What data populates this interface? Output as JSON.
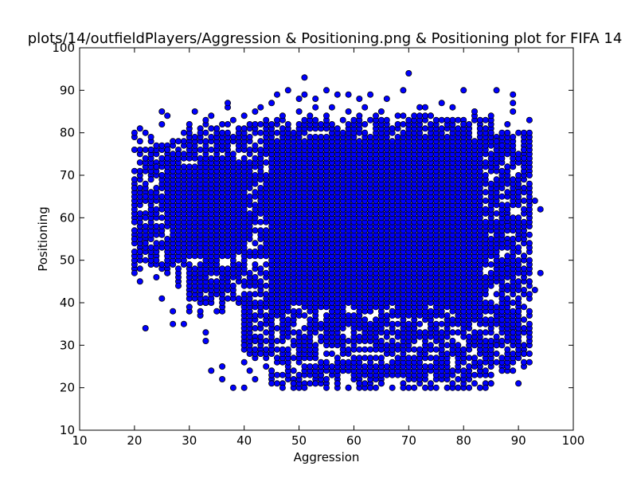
{
  "chart_data": {
    "type": "scatter",
    "title": "plots/14/outfieldPlayers/Aggression & Positioning.png & Positioning plot for FIFA 14",
    "xlabel": "Aggression",
    "ylabel": "Positioning",
    "xlim": [
      10,
      100
    ],
    "ylim": [
      10,
      100
    ],
    "xticks": [
      10,
      20,
      30,
      40,
      50,
      60,
      70,
      80,
      90,
      100
    ],
    "yticks": [
      10,
      20,
      30,
      40,
      50,
      60,
      70,
      80,
      90,
      100
    ],
    "grid": false,
    "marker_color": "#0000ff",
    "marker_edge": "#000000",
    "series": [
      {
        "region_x_range": [
          20,
          94
        ],
        "region_y_range": [
          20,
          94
        ],
        "points": [
          [
            20,
            67
          ],
          [
            20,
            59
          ],
          [
            20,
            55
          ],
          [
            20,
            47
          ],
          [
            21,
            81
          ],
          [
            21,
            76
          ],
          [
            21,
            52
          ],
          [
            21,
            45
          ],
          [
            22,
            80
          ],
          [
            22,
            76
          ],
          [
            22,
            34
          ],
          [
            23,
            79
          ],
          [
            23,
            76
          ],
          [
            23,
            69
          ],
          [
            25,
            85
          ],
          [
            25,
            82
          ],
          [
            25,
            41
          ],
          [
            26,
            84
          ],
          [
            26,
            76
          ],
          [
            27,
            38
          ],
          [
            27,
            35
          ],
          [
            29,
            35
          ],
          [
            29,
            80
          ],
          [
            31,
            85
          ],
          [
            33,
            33
          ],
          [
            33,
            31
          ],
          [
            34,
            24
          ],
          [
            34,
            84
          ],
          [
            36,
            25
          ],
          [
            36,
            22
          ],
          [
            37,
            86
          ],
          [
            37,
            87
          ],
          [
            38,
            20
          ],
          [
            40,
            20
          ],
          [
            40,
            30
          ],
          [
            40,
            26
          ],
          [
            41,
            24
          ],
          [
            42,
            22
          ],
          [
            43,
            86
          ],
          [
            45,
            87
          ],
          [
            46,
            89
          ],
          [
            48,
            90
          ],
          [
            50,
            88
          ],
          [
            51,
            89
          ],
          [
            51,
            93
          ],
          [
            53,
            88
          ],
          [
            55,
            90
          ],
          [
            57,
            89
          ],
          [
            59,
            89
          ],
          [
            61,
            88
          ],
          [
            63,
            89
          ],
          [
            66,
            88
          ],
          [
            69,
            90
          ],
          [
            70,
            94
          ],
          [
            72,
            86
          ],
          [
            73,
            86
          ],
          [
            76,
            87
          ],
          [
            78,
            86
          ],
          [
            80,
            90
          ],
          [
            82,
            85
          ],
          [
            86,
            90
          ],
          [
            88,
            82
          ],
          [
            89,
            89
          ],
          [
            89,
            87
          ],
          [
            89,
            85
          ],
          [
            90,
            66
          ],
          [
            90,
            55
          ],
          [
            90,
            21
          ],
          [
            91,
            76
          ],
          [
            91,
            74
          ],
          [
            91,
            51
          ],
          [
            91,
            28
          ],
          [
            92,
            83
          ],
          [
            92,
            70
          ],
          [
            92,
            26
          ],
          [
            93,
            64
          ],
          [
            93,
            43
          ],
          [
            94,
            62
          ],
          [
            94,
            47
          ],
          [
            89,
            33
          ],
          [
            90,
            38
          ],
          [
            90,
            41
          ],
          [
            88,
            58
          ],
          [
            87,
            24
          ],
          [
            86,
            78
          ],
          [
            85,
            21
          ],
          [
            84,
            20
          ],
          [
            83,
            20
          ],
          [
            81,
            20
          ],
          [
            79,
            20
          ],
          [
            77,
            20
          ],
          [
            75,
            20
          ],
          [
            73,
            20
          ],
          [
            71,
            20
          ],
          [
            69,
            20
          ],
          [
            67,
            20
          ],
          [
            65,
            21
          ],
          [
            63,
            20
          ],
          [
            61,
            21
          ],
          [
            59,
            20
          ],
          [
            57,
            21
          ],
          [
            55,
            20
          ],
          [
            53,
            21
          ],
          [
            51,
            20
          ],
          [
            49,
            21
          ],
          [
            47,
            20
          ],
          [
            45,
            21
          ],
          [
            44,
            25
          ],
          [
            43,
            28
          ],
          [
            42,
            31
          ],
          [
            35,
            38
          ],
          [
            33,
            40
          ],
          [
            30,
            42
          ],
          [
            28,
            44
          ],
          [
            26,
            47
          ],
          [
            24,
            50
          ],
          [
            22,
            54
          ],
          [
            22,
            60
          ],
          [
            22,
            65
          ],
          [
            24,
            72
          ],
          [
            25,
            70
          ],
          [
            26,
            74
          ],
          [
            28,
            75
          ],
          [
            30,
            77
          ],
          [
            32,
            80
          ],
          [
            34,
            81
          ],
          [
            36,
            82
          ],
          [
            38,
            83
          ],
          [
            40,
            84
          ],
          [
            42,
            85
          ],
          [
            44,
            83
          ],
          [
            47,
            84
          ],
          [
            50,
            85
          ],
          [
            53,
            86
          ],
          [
            56,
            86
          ],
          [
            59,
            85
          ],
          [
            62,
            86
          ],
          [
            65,
            85
          ],
          [
            68,
            84
          ],
          [
            71,
            84
          ],
          [
            74,
            84
          ],
          [
            77,
            83
          ],
          [
            80,
            82
          ],
          [
            83,
            81
          ],
          [
            85,
            80
          ],
          [
            87,
            77
          ],
          [
            88,
            72
          ],
          [
            88,
            66
          ],
          [
            88,
            60
          ],
          [
            88,
            54
          ],
          [
            88,
            48
          ],
          [
            87,
            42
          ],
          [
            87,
            36
          ],
          [
            86,
            30
          ],
          [
            86,
            26
          ],
          [
            85,
            23
          ]
        ]
      }
    ]
  }
}
